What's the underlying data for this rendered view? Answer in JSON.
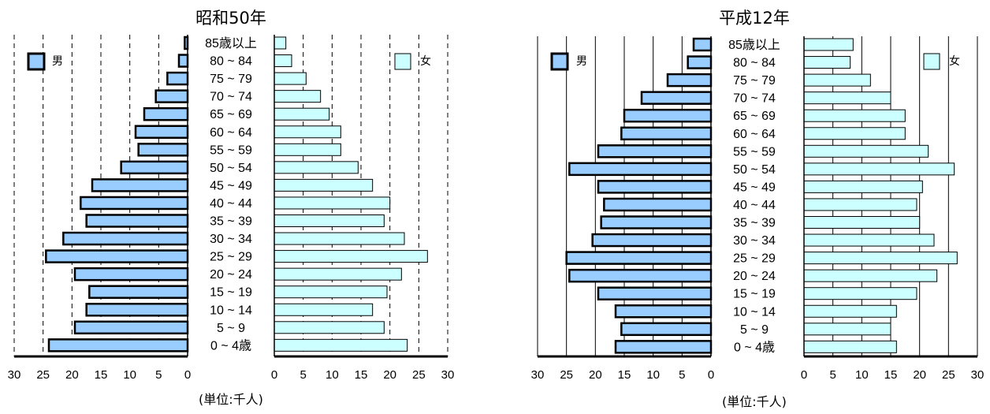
{
  "chart_data": [
    {
      "type": "bar",
      "title": "昭和50年",
      "unit_label": "(単位:千人)",
      "categories": [
        "85歳以上",
        "80 ~ 84",
        "75 ~ 79",
        "70 ~ 74",
        "65 ~ 69",
        "60 ~ 64",
        "55 ~ 59",
        "50 ~ 54",
        "45 ~ 49",
        "40 ~ 44",
        "35 ~ 39",
        "30 ~ 34",
        "25 ~ 29",
        "20 ~ 24",
        "15 ~ 19",
        "10 ~ 14",
        "5 ~ 9",
        "0 ~ 4歳"
      ],
      "series": [
        {
          "name": "男",
          "color": "#99ccff",
          "values": [
            0.5,
            1.5,
            3.5,
            5.5,
            7.5,
            9,
            8.5,
            11.5,
            16.5,
            18.5,
            17.5,
            21.5,
            24.5,
            19.5,
            17,
            17.5,
            19.5,
            24
          ]
        },
        {
          "name": "女",
          "color": "#ccffff",
          "values": [
            2,
            3,
            5.5,
            8,
            9.5,
            11.5,
            11.5,
            14.5,
            17,
            20,
            19,
            22.5,
            26.5,
            22,
            19.5,
            17,
            19,
            23
          ]
        }
      ],
      "xlim": [
        0,
        30
      ],
      "ticks": [
        0,
        5,
        10,
        15,
        20,
        25,
        30
      ],
      "grid_style": "dashed"
    },
    {
      "type": "bar",
      "title": "平成12年",
      "unit_label": "(単位:千人)",
      "categories": [
        "85歳以上",
        "80 ~ 84",
        "75 ~ 79",
        "70 ~ 74",
        "65 ~ 69",
        "60 ~ 64",
        "55 ~ 59",
        "50 ~ 54",
        "45 ~ 49",
        "40 ~ 44",
        "35 ~ 39",
        "30 ~ 34",
        "25 ~ 29",
        "20 ~ 24",
        "15 ~ 19",
        "10 ~ 14",
        "5 ~ 9",
        "0 ~ 4歳"
      ],
      "series": [
        {
          "name": "男",
          "color": "#99ccff",
          "values": [
            3,
            4,
            7.5,
            12,
            15,
            15.5,
            19.5,
            24.5,
            19.5,
            18.5,
            19,
            20.5,
            25,
            24.5,
            19.5,
            16.5,
            15.5,
            16.5
          ]
        },
        {
          "name": "女",
          "color": "#ccffff",
          "values": [
            8.5,
            8,
            11.5,
            15,
            17.5,
            17.5,
            21.5,
            26,
            20.5,
            19.5,
            20,
            22.5,
            26.5,
            23,
            19.5,
            16,
            15,
            16
          ]
        }
      ],
      "xlim": [
        0,
        30
      ],
      "ticks": [
        0,
        5,
        10,
        15,
        20,
        25,
        30
      ],
      "grid_style": "solid"
    }
  ]
}
